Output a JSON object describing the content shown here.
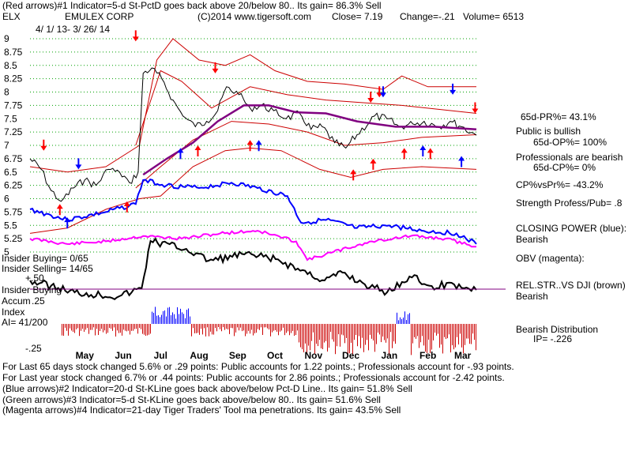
{
  "header": {
    "line1": "(Red arrows)#1 Indicator=5-d St-PctD goes back above 20/below 80.. Its gain= 86.3% Sell",
    "ticker": "ELX",
    "company": "EMULEX CORP",
    "copyright": "(C)2014 www.tigersoft.com",
    "close": "Close=  7.19",
    "change": "Change=-.21",
    "volume": "Volume= 6513",
    "date_range": "4/ 1/ 13-  3/ 26/ 14"
  },
  "price_ticks": [
    "9",
    "8.75",
    "8.5",
    "8.25",
    "8",
    "7.75",
    "7.5",
    "7.25",
    "7",
    "6.75",
    "6.5",
    "6.25",
    "6",
    "5.75",
    "5.5",
    "5.25",
    "5"
  ],
  "months": [
    "May",
    "Jun",
    "Jul",
    "Aug",
    "Sep",
    "Oct",
    "Nov",
    "Dec",
    "Jan",
    "Feb",
    "Mar"
  ],
  "left_labels": {
    "insider_buying_count": "Insider Buying= 0/65",
    "insider_selling_count": "Insider Selling= 14/65",
    "plus50": "+.50",
    "insider_buying": "Insider Buying",
    "accum": "Accum",
    "p25": ".25",
    "index": "Index",
    "ai": "AI= 41/200",
    "m25": "-.25"
  },
  "right_panel": {
    "pr65": "65d-PR%= 43.1%",
    "public_bullish": "Public is bullish",
    "op65": "65d-OP%= 100%",
    "pros_bearish": "Professionals are bearish",
    "cp65": "65d-CP%= 0%",
    "cpvspr": "CP%vsPr%= -43.2%",
    "strength": "Strength Profess/Pub= .8",
    "closing_power": "CLOSING POWER (blue):",
    "cp_state": "Bearish",
    "obv": "OBV (magenta):",
    "relstr": "REL.STR..VS DJI (brown)",
    "relstr_state": "Bearish",
    "bearish_dist": "Bearish Distribution",
    "ip": "IP= -.226"
  },
  "footer": {
    "line1": "For Last 65 days stock changed  5.6% or  .29 points:  Public accounts for  1.22 points.;  Professionals account for -.93 points.",
    "line2": "For Last year stock changed  6.7% or  .44 points:  Public accounts for  2.86 points.;  Professionals account for -2.42 points.",
    "line3": "(Blue arrows)#2 Indicator=20-d St-KLine goes back above/below Pct-D Line.. Its gain= 51.8% Sell",
    "line4": "(Green arrows)#3 Indicator=5-d St-KLine goes back above/below 80.. Its gain= 51.6% Sell",
    "line5": "(Magenta arrows)#4 Indicator=21-day Tiger Traders' Tool ma penetrations. Its gain= 43.5% Sell"
  },
  "colors": {
    "grid": "#00a000",
    "price": "#000000",
    "bands": "#cc0000",
    "ma": "#800080",
    "closing_power": "#0000ff",
    "obv": "#ff00ff",
    "relstr": "#000000",
    "accum_pos": "#0000ff",
    "accum_neg": "#cc0000",
    "arrow_red": "#ff0000",
    "arrow_blue": "#0000ff",
    "baseline": "#800080"
  },
  "chart_data": {
    "type": "line",
    "title": "EMULEX CORP (ELX)",
    "x_range": [
      "2013-04-01",
      "2014-03-26"
    ],
    "ylim": [
      5,
      9
    ],
    "grid": true,
    "series": [
      {
        "name": "Close",
        "points": [
          [
            "2013-04-01",
            6.75
          ],
          [
            "2013-04-10",
            6.55
          ],
          [
            "2013-04-18",
            6.15
          ],
          [
            "2013-04-26",
            5.95
          ],
          [
            "2013-05-06",
            6.2
          ],
          [
            "2013-05-15",
            6.35
          ],
          [
            "2013-05-24",
            6.25
          ],
          [
            "2013-06-03",
            6.55
          ],
          [
            "2013-06-12",
            6.5
          ],
          [
            "2013-06-20",
            6.3
          ],
          [
            "2013-06-27",
            6.5
          ],
          [
            "2013-07-01",
            8.35
          ],
          [
            "2013-07-08",
            8.45
          ],
          [
            "2013-07-16",
            8.25
          ],
          [
            "2013-07-25",
            7.85
          ],
          [
            "2013-08-02",
            7.55
          ],
          [
            "2013-08-12",
            7.35
          ],
          [
            "2013-08-21",
            7.45
          ],
          [
            "2013-08-30",
            7.65
          ],
          [
            "2013-09-06",
            8.1
          ],
          [
            "2013-09-16",
            7.95
          ],
          [
            "2013-09-25",
            7.7
          ],
          [
            "2013-10-04",
            7.75
          ],
          [
            "2013-10-14",
            7.65
          ],
          [
            "2013-10-24",
            7.5
          ],
          [
            "2013-11-04",
            7.6
          ],
          [
            "2013-11-13",
            7.3
          ],
          [
            "2013-11-22",
            7.35
          ],
          [
            "2013-12-02",
            7.05
          ],
          [
            "2013-12-11",
            6.95
          ],
          [
            "2013-12-20",
            7.2
          ],
          [
            "2014-01-03",
            7.55
          ],
          [
            "2014-01-13",
            7.5
          ],
          [
            "2014-01-23",
            7.35
          ],
          [
            "2014-02-03",
            7.4
          ],
          [
            "2014-02-12",
            7.45
          ],
          [
            "2014-02-24",
            7.35
          ],
          [
            "2014-03-05",
            7.45
          ],
          [
            "2014-03-14",
            7.35
          ],
          [
            "2014-03-26",
            7.19
          ]
        ]
      },
      {
        "name": "21-day MA",
        "points": [
          [
            "2013-07-01",
            6.45
          ],
          [
            "2013-07-20",
            6.75
          ],
          [
            "2013-08-10",
            7.05
          ],
          [
            "2013-08-30",
            7.45
          ],
          [
            "2013-09-20",
            7.75
          ],
          [
            "2013-10-10",
            7.75
          ],
          [
            "2013-11-01",
            7.62
          ],
          [
            "2013-11-25",
            7.6
          ],
          [
            "2013-12-20",
            7.45
          ],
          [
            "2014-01-20",
            7.35
          ],
          [
            "2014-02-20",
            7.35
          ],
          [
            "2014-03-26",
            7.3
          ]
        ]
      }
    ],
    "annotations": {
      "red_arrows_down": [
        "2013-04-12",
        "2013-06-25",
        "2013-08-28",
        "2013-12-31",
        "2014-01-07",
        "2014-03-25"
      ],
      "red_arrows_up": [
        "2013-04-25",
        "2013-06-18",
        "2013-08-14",
        "2013-09-25",
        "2013-12-17",
        "2014-01-02",
        "2014-01-27",
        "2014-02-17"
      ],
      "blue_arrows_up": [
        "2013-05-01",
        "2013-07-31",
        "2013-10-02",
        "2014-02-11",
        "2014-03-14"
      ],
      "blue_arrows_down": [
        "2013-05-10",
        "2014-01-10",
        "2014-03-07"
      ]
    }
  }
}
